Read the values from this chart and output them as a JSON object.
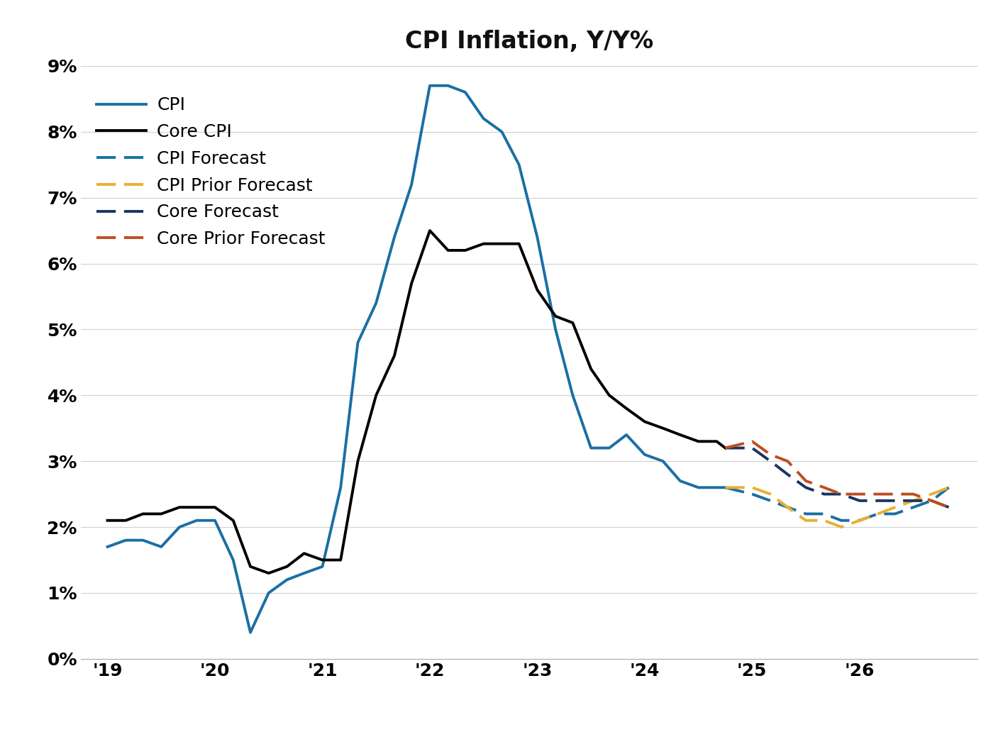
{
  "title": "CPI Inflation, Y/Y%",
  "title_fontsize": 24,
  "title_fontweight": "bold",
  "background_color": "#ffffff",
  "ylim": [
    0,
    0.09
  ],
  "yticks": [
    0,
    0.01,
    0.02,
    0.03,
    0.04,
    0.05,
    0.06,
    0.07,
    0.08,
    0.09
  ],
  "ytick_labels": [
    "0%",
    "1%",
    "2%",
    "3%",
    "4%",
    "5%",
    "6%",
    "7%",
    "8%",
    "9%"
  ],
  "cpi_x": [
    2019.0,
    2019.17,
    2019.33,
    2019.5,
    2019.67,
    2019.83,
    2020.0,
    2020.17,
    2020.33,
    2020.5,
    2020.67,
    2020.83,
    2021.0,
    2021.17,
    2021.33,
    2021.5,
    2021.67,
    2021.83,
    2022.0,
    2022.17,
    2022.33,
    2022.5,
    2022.67,
    2022.83,
    2023.0,
    2023.17,
    2023.33,
    2023.5,
    2023.67,
    2023.83,
    2024.0,
    2024.17,
    2024.33,
    2024.5,
    2024.67,
    2024.75
  ],
  "cpi_y": [
    0.017,
    0.018,
    0.018,
    0.017,
    0.02,
    0.021,
    0.021,
    0.015,
    0.004,
    0.01,
    0.012,
    0.013,
    0.014,
    0.026,
    0.048,
    0.054,
    0.064,
    0.072,
    0.087,
    0.087,
    0.086,
    0.082,
    0.08,
    0.075,
    0.064,
    0.05,
    0.04,
    0.032,
    0.032,
    0.034,
    0.031,
    0.03,
    0.027,
    0.026,
    0.026,
    0.026
  ],
  "cpi_color": "#1a6fa3",
  "core_cpi_x": [
    2019.0,
    2019.17,
    2019.33,
    2019.5,
    2019.67,
    2019.83,
    2020.0,
    2020.17,
    2020.33,
    2020.5,
    2020.67,
    2020.83,
    2021.0,
    2021.17,
    2021.33,
    2021.5,
    2021.67,
    2021.83,
    2022.0,
    2022.17,
    2022.33,
    2022.5,
    2022.67,
    2022.83,
    2023.0,
    2023.17,
    2023.33,
    2023.5,
    2023.67,
    2023.83,
    2024.0,
    2024.17,
    2024.33,
    2024.5,
    2024.67,
    2024.75
  ],
  "core_cpi_y": [
    0.021,
    0.021,
    0.022,
    0.022,
    0.023,
    0.023,
    0.023,
    0.021,
    0.014,
    0.013,
    0.014,
    0.016,
    0.015,
    0.015,
    0.03,
    0.04,
    0.046,
    0.057,
    0.065,
    0.062,
    0.062,
    0.063,
    0.063,
    0.063,
    0.056,
    0.052,
    0.051,
    0.044,
    0.04,
    0.038,
    0.036,
    0.035,
    0.034,
    0.033,
    0.033,
    0.032
  ],
  "core_cpi_color": "#000000",
  "cpi_forecast_x": [
    2024.75,
    2025.0,
    2025.17,
    2025.33,
    2025.5,
    2025.67,
    2025.83,
    2026.0,
    2026.17,
    2026.33,
    2026.5,
    2026.67,
    2026.83
  ],
  "cpi_forecast_y": [
    0.026,
    0.025,
    0.024,
    0.023,
    0.022,
    0.022,
    0.021,
    0.021,
    0.022,
    0.022,
    0.023,
    0.024,
    0.026
  ],
  "cpi_forecast_color": "#1a6fa3",
  "cpi_prior_forecast_x": [
    2024.75,
    2025.0,
    2025.17,
    2025.33,
    2025.5,
    2025.67,
    2025.83,
    2026.0,
    2026.17,
    2026.33,
    2026.5,
    2026.67,
    2026.83
  ],
  "cpi_prior_forecast_y": [
    0.026,
    0.026,
    0.025,
    0.023,
    0.021,
    0.021,
    0.02,
    0.021,
    0.022,
    0.023,
    0.024,
    0.025,
    0.026
  ],
  "cpi_prior_forecast_color": "#e8b030",
  "core_forecast_x": [
    2024.75,
    2025.0,
    2025.17,
    2025.33,
    2025.5,
    2025.67,
    2025.83,
    2026.0,
    2026.17,
    2026.33,
    2026.5,
    2026.67,
    2026.83
  ],
  "core_forecast_y": [
    0.032,
    0.032,
    0.03,
    0.028,
    0.026,
    0.025,
    0.025,
    0.024,
    0.024,
    0.024,
    0.024,
    0.024,
    0.023
  ],
  "core_forecast_color": "#1a3560",
  "core_prior_forecast_x": [
    2024.75,
    2025.0,
    2025.17,
    2025.33,
    2025.5,
    2025.67,
    2025.83,
    2026.0,
    2026.17,
    2026.33,
    2026.5,
    2026.67,
    2026.83
  ],
  "core_prior_forecast_y": [
    0.032,
    0.033,
    0.031,
    0.03,
    0.027,
    0.026,
    0.025,
    0.025,
    0.025,
    0.025,
    0.025,
    0.024,
    0.023
  ],
  "core_prior_forecast_color": "#bf4e20",
  "xticks": [
    2019.0,
    2020.0,
    2021.0,
    2022.0,
    2023.0,
    2024.0,
    2025.0,
    2026.0
  ],
  "xtick_labels": [
    "'19",
    "'20",
    "'21",
    "'22",
    "'23",
    "'24",
    "'25",
    "'26"
  ],
  "xlim": [
    2018.75,
    2027.1
  ],
  "legend_labels": [
    "CPI",
    "Core CPI",
    "CPI Forecast",
    "CPI Prior Forecast",
    "Core Forecast",
    "Core Prior Forecast"
  ],
  "grid_color": "#d0d0d0",
  "tick_fontsize": 18,
  "legend_fontsize": 18,
  "line_width": 2.8,
  "dash_linewidth": 2.8
}
